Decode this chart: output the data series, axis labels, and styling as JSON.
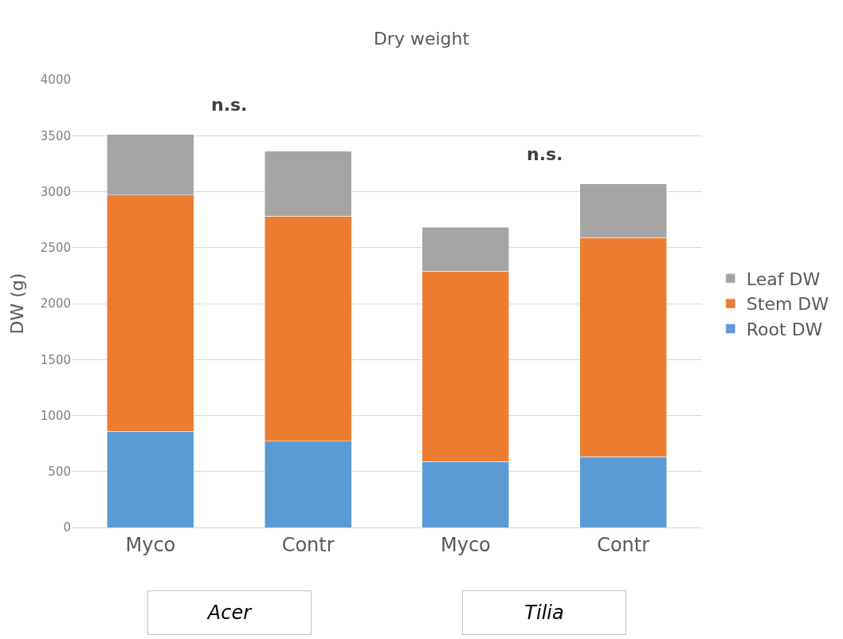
{
  "chart_data": {
    "type": "bar",
    "title": "Dry weight",
    "ylabel": "DW (g)",
    "stacked": true,
    "categories": [
      "Myco",
      "Contr",
      "Myco",
      "Contr"
    ],
    "series": [
      {
        "name": "Root DW",
        "color": "#5b9bd5",
        "values": [
          860,
          770,
          590,
          630
        ]
      },
      {
        "name": "Stem DW",
        "color": "#ed7d31",
        "values": [
          2110,
          2010,
          1700,
          1960
        ]
      },
      {
        "name": "Leaf DW",
        "color": "#a5a5a5",
        "values": [
          540,
          580,
          390,
          480
        ]
      }
    ],
    "ylim": [
      0,
      4000
    ],
    "yticks": [
      0,
      500,
      1000,
      1500,
      2000,
      2500,
      3000,
      3500,
      4000
    ],
    "grid": "y",
    "legend": "right",
    "annotations": [
      "n.s.",
      "n.s.",
      "Acer",
      "Tilia"
    ]
  }
}
